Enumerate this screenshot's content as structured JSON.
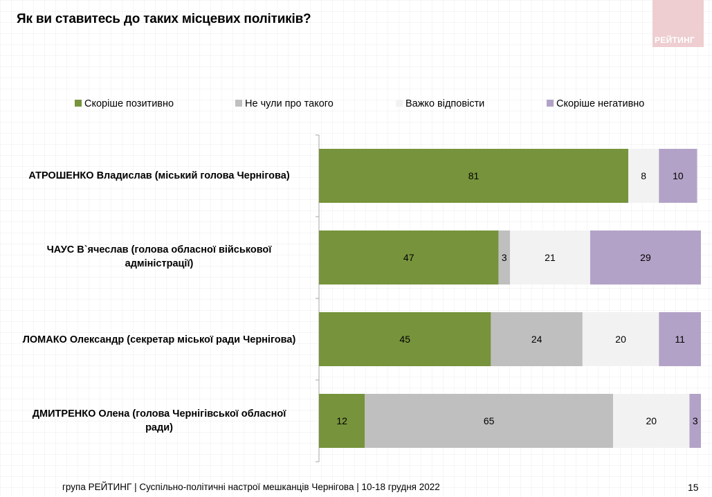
{
  "header": {
    "title": "Як ви ставитесь до таких місцевих політиків?",
    "logo_text": "РЕЙТИНГ"
  },
  "colors": {
    "positive": "#77933c",
    "not_heard": "#bfbfbf",
    "hard_to_say": "#f2f2f2",
    "negative": "#b3a2c7",
    "logo_bg": "#eeced0"
  },
  "chart_data": {
    "type": "bar",
    "orientation": "horizontal",
    "stacked": true,
    "title": "Як ви ставитесь до таких місцевих політиків?",
    "xlabel": "",
    "ylabel": "",
    "xlim": [
      0,
      100
    ],
    "legend_position": "top",
    "grid": false,
    "categories": [
      "АТРОШЕНКО Владислав (міський голова Чернігова)",
      "ЧАУС В`ячеслав (голова обласної військової адміністрації)",
      "ЛОМАКО Олександр (секретар міської ради Чернігова)",
      "ДМИТРЕНКО Олена (голова Чернігівської обласної ради)"
    ],
    "category_lines": [
      [
        "АТРОШЕНКО Владислав (міський голова Чернігова)"
      ],
      [
        "ЧАУС В`ячеслав (голова обласної військової",
        "адміністрації)"
      ],
      [
        "ЛОМАКО Олександр (секретар міської ради Чернігова)"
      ],
      [
        "ДМИТРЕНКО Олена (голова Чернігівської обласної",
        "ради)"
      ]
    ],
    "series": [
      {
        "name": "Скоріше позитивно",
        "color": "#77933c",
        "values": [
          81,
          47,
          45,
          12
        ]
      },
      {
        "name": "Не чули про такого",
        "color": "#bfbfbf",
        "values": [
          0,
          3,
          24,
          65
        ]
      },
      {
        "name": "Важко відповісти",
        "color": "#f2f2f2",
        "values": [
          8,
          21,
          20,
          20
        ]
      },
      {
        "name": "Скоріше негативно",
        "color": "#b3a2c7",
        "values": [
          10,
          29,
          11,
          3
        ]
      }
    ]
  },
  "footer": {
    "text": "група РЕЙТИНГ  | Суспільно-політичні настрої мешканців Чернігова | 10-18 грудня 2022",
    "page_number": "15"
  }
}
